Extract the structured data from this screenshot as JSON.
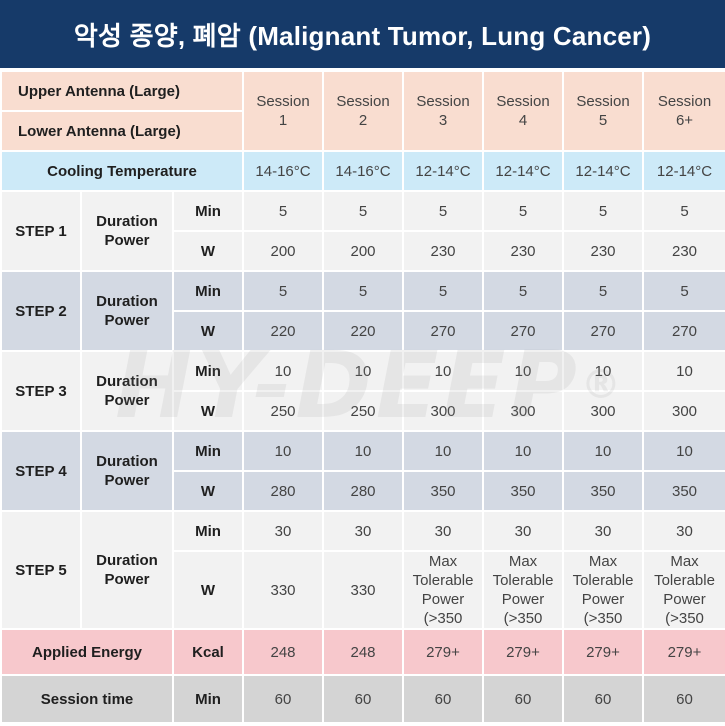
{
  "header": {
    "title": "악성 종양, 폐암 (Malignant Tumor, Lung Cancer)"
  },
  "watermark": {
    "text": "HY-DEEP",
    "mark": "®"
  },
  "table": {
    "upper_antenna": "Upper Antenna (Large)",
    "lower_antenna": "Lower Antenna (Large)",
    "sessions": [
      {
        "word": "Session",
        "num": "1"
      },
      {
        "word": "Session",
        "num": "2"
      },
      {
        "word": "Session",
        "num": "3"
      },
      {
        "word": "Session",
        "num": "4"
      },
      {
        "word": "Session",
        "num": "5"
      },
      {
        "word": "Session",
        "num": "6+"
      }
    ],
    "cooling": {
      "label": "Cooling Temperature",
      "values": [
        "14-16°C",
        "14-16°C",
        "12-14°C",
        "12-14°C",
        "12-14°C",
        "12-14°C"
      ]
    },
    "param_label_1": "Duration",
    "param_label_2": "Power",
    "unit_min": "Min",
    "unit_w": "W",
    "steps": [
      {
        "label": "STEP 1",
        "min": [
          "5",
          "5",
          "5",
          "5",
          "5",
          "5"
        ],
        "w": [
          "200",
          "200",
          "230",
          "230",
          "230",
          "230"
        ]
      },
      {
        "label": "STEP 2",
        "min": [
          "5",
          "5",
          "5",
          "5",
          "5",
          "5"
        ],
        "w": [
          "220",
          "220",
          "270",
          "270",
          "270",
          "270"
        ]
      },
      {
        "label": "STEP 3",
        "min": [
          "10",
          "10",
          "10",
          "10",
          "10",
          "10"
        ],
        "w": [
          "250",
          "250",
          "300",
          "300",
          "300",
          "300"
        ]
      },
      {
        "label": "STEP 4",
        "min": [
          "10",
          "10",
          "10",
          "10",
          "10",
          "10"
        ],
        "w": [
          "280",
          "280",
          "350",
          "350",
          "350",
          "350"
        ]
      }
    ],
    "step5": {
      "label": "STEP 5",
      "min": [
        "30",
        "30",
        "30",
        "30",
        "30",
        "30"
      ],
      "w": [
        "330",
        "330"
      ],
      "max_power": [
        "Max",
        "Tolerable",
        "Power",
        "(>350"
      ]
    },
    "energy": {
      "label": "Applied Energy",
      "unit": "Kcal",
      "values": [
        "248",
        "248",
        "279+",
        "279+",
        "279+",
        "279+"
      ]
    },
    "session_time": {
      "label": "Session time",
      "unit": "Min",
      "values": [
        "60",
        "60",
        "60",
        "60",
        "60",
        "60"
      ]
    }
  }
}
